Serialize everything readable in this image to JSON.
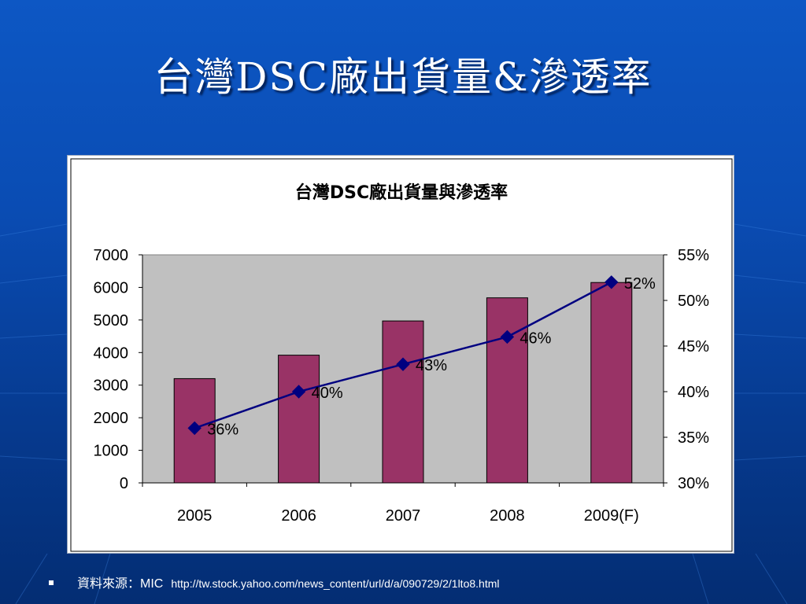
{
  "slide": {
    "title": "台灣DSC廠出貨量&滲透率"
  },
  "source": {
    "label": "資料來源：MIC",
    "url": "http://tw.stock.yahoo.com/news_content/url/d/a/090729/2/1lto8.html"
  },
  "colors": {
    "bar": "#993366",
    "line": "#000080",
    "plot_bg": "#c0c0c0"
  },
  "chart_data": {
    "type": "bar",
    "title": "台灣DSC廠出貨量與滲透率",
    "categories": [
      "2005",
      "2006",
      "2007",
      "2008",
      "2009(F)"
    ],
    "series": [
      {
        "type": "bar",
        "axis": "left",
        "values": [
          3200,
          3920,
          4970,
          5680,
          6150
        ]
      },
      {
        "type": "line",
        "axis": "right",
        "values": [
          36,
          40,
          43,
          46,
          52
        ],
        "labels": [
          "36%",
          "40%",
          "43%",
          "46%",
          "52%"
        ]
      }
    ],
    "y_left": {
      "range": [
        0,
        7000
      ],
      "ticks": [
        "0",
        "1000",
        "2000",
        "3000",
        "4000",
        "5000",
        "6000",
        "7000"
      ]
    },
    "y_right": {
      "range": [
        30,
        55
      ],
      "ticks": [
        "30%",
        "35%",
        "40%",
        "45%",
        "50%",
        "55%"
      ]
    },
    "grid": false,
    "legend": "none"
  }
}
